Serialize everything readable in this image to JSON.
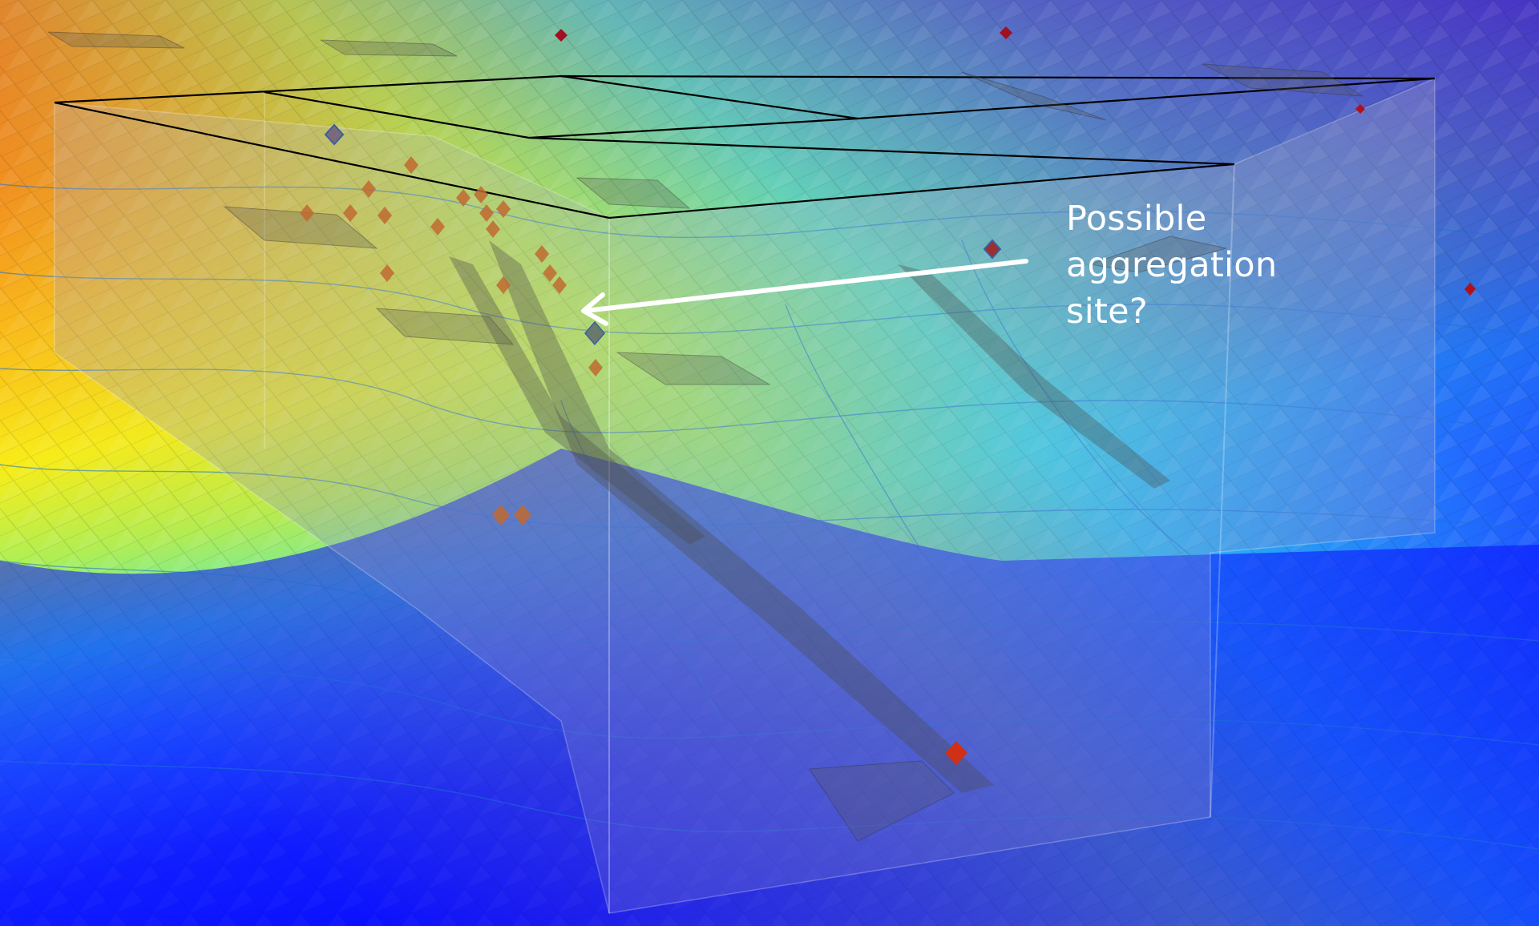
{
  "annotation": {
    "lines": [
      "Possible",
      "aggregation",
      "site?"
    ],
    "color": "#ffffff"
  },
  "colormap": [
    "#ff2a0f",
    "#ff7a14",
    "#ffd21a",
    "#f5f514",
    "#8ef07a",
    "#3ef0e0",
    "#2f9aff",
    "#1e3cff",
    "#0a1aff"
  ],
  "background_color": "#0a0cff"
}
